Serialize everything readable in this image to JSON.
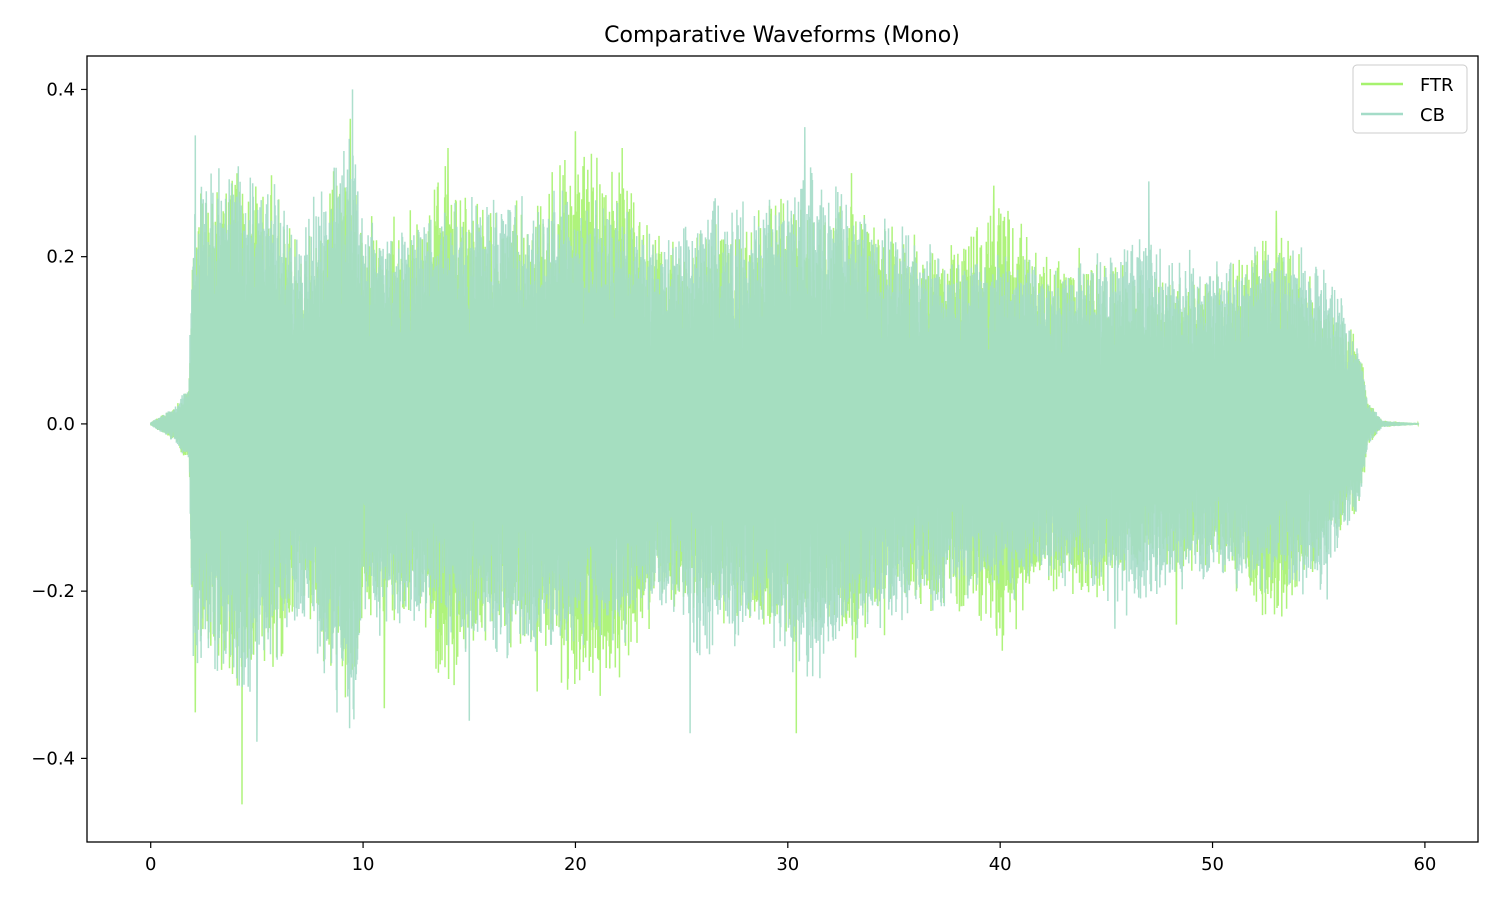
{
  "chart_data": {
    "type": "line",
    "title": "Comparative Waveforms (Mono)",
    "xlabel": "",
    "ylabel": "",
    "xlim": [
      -3,
      62.5
    ],
    "ylim": [
      -0.5,
      0.44
    ],
    "xticks": [
      0,
      10,
      20,
      30,
      40,
      50,
      60
    ],
    "xtick_labels": [
      "0",
      "10",
      "20",
      "30",
      "40",
      "50",
      "60"
    ],
    "yticks": [
      -0.4,
      -0.2,
      0.0,
      0.2,
      0.4
    ],
    "ytick_labels": [
      "−0.4",
      "−0.2",
      "0.0",
      "0.2",
      "0.4"
    ],
    "grid": false,
    "legend_position": "top-right",
    "series": [
      {
        "name": "FTR",
        "color": "#a6f26e",
        "duration": 59.7,
        "envelope": [
          [
            0,
            0.002
          ],
          [
            1.0,
            0.02
          ],
          [
            1.8,
            0.05
          ],
          [
            2.0,
            0.29
          ],
          [
            3.0,
            0.3
          ],
          [
            4.0,
            0.33
          ],
          [
            5.0,
            0.3
          ],
          [
            6.0,
            0.3
          ],
          [
            7.0,
            0.22
          ],
          [
            9.4,
            0.36
          ],
          [
            10.0,
            0.25
          ],
          [
            12.0,
            0.25
          ],
          [
            14.0,
            0.33
          ],
          [
            16.0,
            0.27
          ],
          [
            18.0,
            0.28
          ],
          [
            20.0,
            0.35
          ],
          [
            22.0,
            0.33
          ],
          [
            24.0,
            0.23
          ],
          [
            26.0,
            0.24
          ],
          [
            28.0,
            0.25
          ],
          [
            30.0,
            0.29
          ],
          [
            32.0,
            0.25
          ],
          [
            33.0,
            0.3
          ],
          [
            35.0,
            0.24
          ],
          [
            38.0,
            0.23
          ],
          [
            40.0,
            0.28
          ],
          [
            42.0,
            0.21
          ],
          [
            44.0,
            0.22
          ],
          [
            46.0,
            0.19
          ],
          [
            50.0,
            0.18
          ],
          [
            53.0,
            0.25
          ],
          [
            55.0,
            0.17
          ],
          [
            57.0,
            0.1
          ],
          [
            57.3,
            0.03
          ],
          [
            58.0,
            0.004
          ],
          [
            59.7,
            0.001
          ]
        ],
        "peaks": [
          [
            2.1,
            -0.345
          ],
          [
            4.3,
            -0.455
          ],
          [
            9.4,
            0.365
          ],
          [
            11.0,
            -0.34
          ],
          [
            14.0,
            0.33
          ],
          [
            18.2,
            -0.32
          ],
          [
            20.0,
            0.35
          ],
          [
            22.2,
            0.33
          ],
          [
            30.4,
            -0.37
          ],
          [
            33.0,
            0.3
          ],
          [
            39.7,
            0.285
          ],
          [
            53.0,
            0.255
          ],
          [
            48.3,
            -0.24
          ]
        ]
      },
      {
        "name": "CB",
        "color": "#a4dcc8",
        "duration": 59.7,
        "envelope": [
          [
            0,
            0.002
          ],
          [
            1.0,
            0.02
          ],
          [
            1.8,
            0.05
          ],
          [
            2.0,
            0.3
          ],
          [
            3.0,
            0.32
          ],
          [
            4.0,
            0.33
          ],
          [
            5.0,
            0.32
          ],
          [
            6.0,
            0.3
          ],
          [
            7.0,
            0.24
          ],
          [
            9.5,
            0.4
          ],
          [
            10.0,
            0.26
          ],
          [
            12.0,
            0.25
          ],
          [
            14.0,
            0.27
          ],
          [
            16.0,
            0.29
          ],
          [
            18.0,
            0.3
          ],
          [
            20.0,
            0.28
          ],
          [
            22.0,
            0.28
          ],
          [
            24.0,
            0.22
          ],
          [
            26.0,
            0.3
          ],
          [
            28.0,
            0.27
          ],
          [
            30.0,
            0.29
          ],
          [
            31.0,
            0.35
          ],
          [
            33.0,
            0.27
          ],
          [
            35.0,
            0.25
          ],
          [
            38.0,
            0.22
          ],
          [
            40.0,
            0.22
          ],
          [
            42.0,
            0.2
          ],
          [
            44.0,
            0.2
          ],
          [
            46.0,
            0.24
          ],
          [
            50.0,
            0.2
          ],
          [
            53.0,
            0.22
          ],
          [
            55.0,
            0.22
          ],
          [
            57.0,
            0.1
          ],
          [
            57.3,
            0.03
          ],
          [
            58.0,
            0.004
          ],
          [
            59.7,
            0.001
          ]
        ],
        "peaks": [
          [
            2.1,
            0.345
          ],
          [
            5.0,
            -0.38
          ],
          [
            9.5,
            0.4
          ],
          [
            15.0,
            -0.355
          ],
          [
            25.4,
            -0.37
          ],
          [
            30.8,
            0.355
          ],
          [
            47.0,
            0.29
          ],
          [
            45.4,
            -0.245
          ],
          [
            55.4,
            -0.21
          ]
        ]
      }
    ]
  }
}
